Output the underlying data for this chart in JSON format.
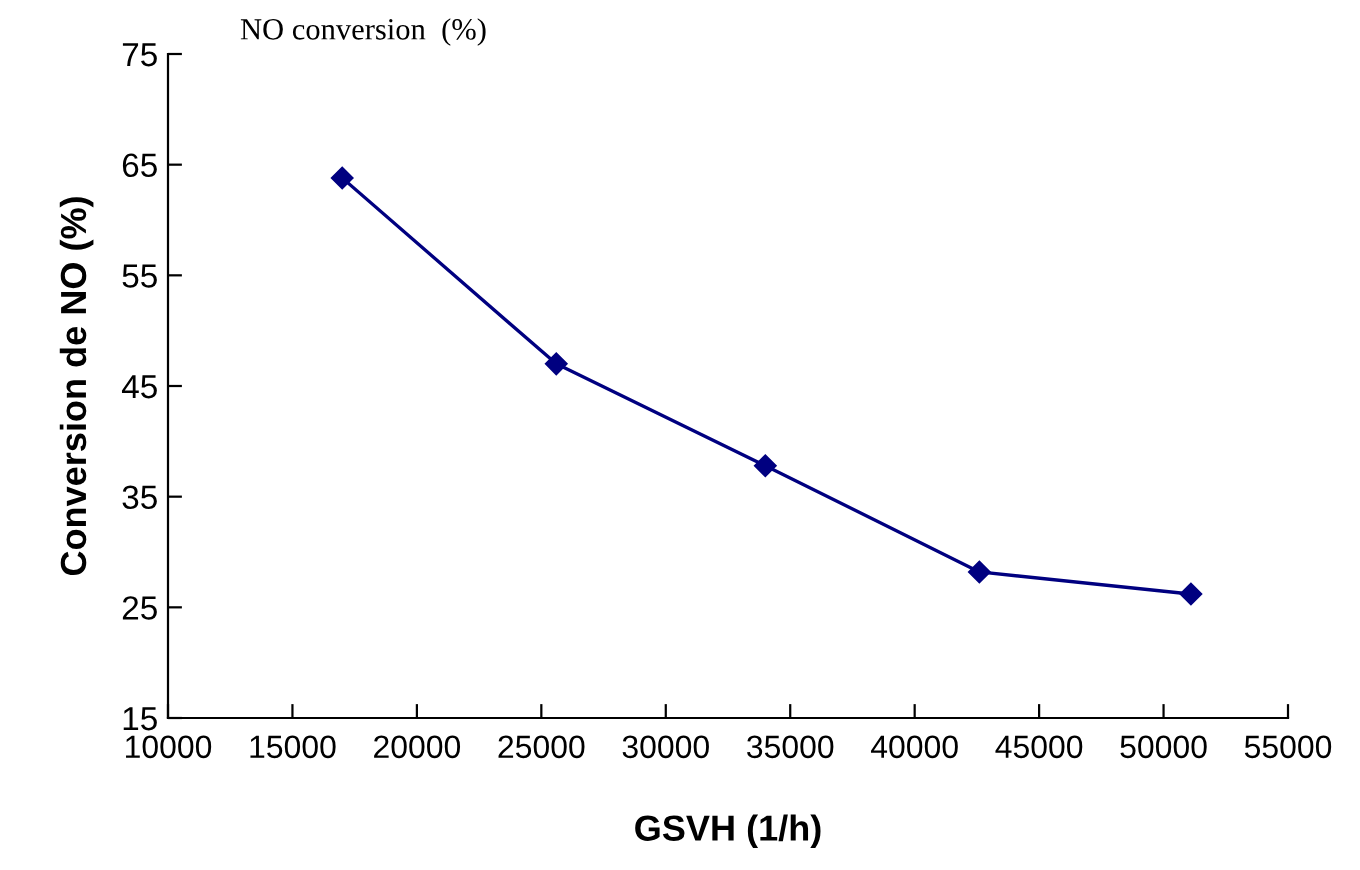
{
  "chart_data": {
    "type": "line",
    "title": "NO conversion  (%)",
    "xlabel": "GSVH (1/h)",
    "ylabel": "Conversion de NO (%)",
    "x": [
      17000,
      25600,
      34000,
      42600,
      51100
    ],
    "series": [
      {
        "color": "#000080",
        "values": [
          63.8,
          47.0,
          37.8,
          28.2,
          26.2
        ]
      }
    ],
    "xlim": [
      10000,
      55000
    ],
    "xticks": [
      10000,
      15000,
      20000,
      25000,
      30000,
      35000,
      40000,
      45000,
      50000,
      55000
    ],
    "ylim": [
      15,
      75
    ],
    "yticks": [
      15,
      25,
      35,
      45,
      55,
      65,
      75
    ],
    "marker": "diamond",
    "line_style": "solid",
    "grid": false,
    "legend": false
  }
}
